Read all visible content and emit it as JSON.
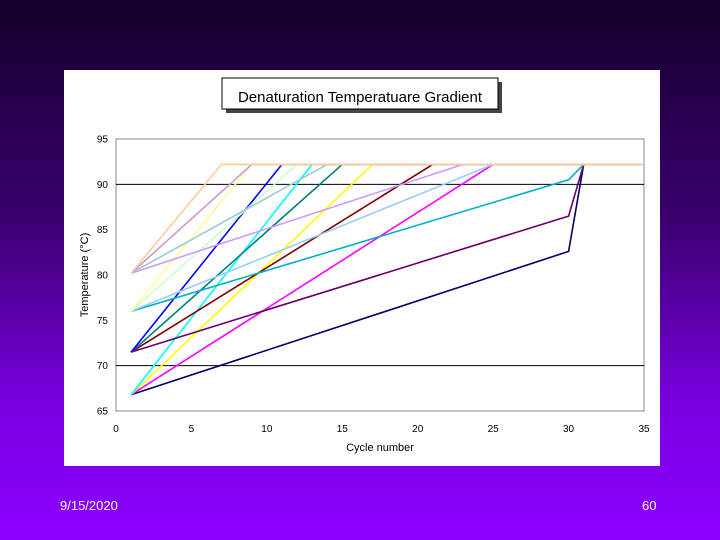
{
  "footer": {
    "date": "9/15/2020",
    "page": "60"
  },
  "chart_data": {
    "type": "line",
    "title": "Denaturation Temperatuare Gradient",
    "xlabel": "Cycle number",
    "ylabel": "Temperature (°C)",
    "xlim": [
      0,
      35
    ],
    "ylim": [
      65,
      95
    ],
    "x_ticks": [
      "0",
      "5",
      "10",
      "15",
      "20",
      "25",
      "30",
      "35"
    ],
    "y_ticks": [
      "65",
      "70",
      "75",
      "80",
      "85",
      "90",
      "95"
    ],
    "gridlines_y": [
      70,
      90
    ],
    "plateau": 92.2,
    "legend": "none",
    "series": [
      {
        "color": "#000066",
        "points": [
          [
            1,
            66.8
          ],
          [
            30,
            82.6
          ],
          [
            31,
            92.2
          ]
        ]
      },
      {
        "color": "#FF00FF",
        "points": [
          [
            1,
            66.8
          ],
          [
            25,
            92.2
          ]
        ]
      },
      {
        "color": "#FFFF00",
        "points": [
          [
            1,
            66.8
          ],
          [
            17,
            92.2
          ]
        ]
      },
      {
        "color": "#00FFFF",
        "points": [
          [
            1,
            66.8
          ],
          [
            13,
            92.2
          ]
        ]
      },
      {
        "color": "#660066",
        "points": [
          [
            1,
            71.5
          ],
          [
            30,
            86.5
          ],
          [
            31,
            92.2
          ]
        ]
      },
      {
        "color": "#800000",
        "points": [
          [
            1,
            71.5
          ],
          [
            21,
            92.2
          ]
        ]
      },
      {
        "color": "#008080",
        "points": [
          [
            1,
            71.5
          ],
          [
            15,
            92.2
          ]
        ]
      },
      {
        "color": "#0000FF",
        "points": [
          [
            1,
            71.5
          ],
          [
            11,
            92.2
          ]
        ]
      },
      {
        "color": "#00B0C8",
        "points": [
          [
            1,
            76.0
          ],
          [
            30,
            90.5
          ],
          [
            31,
            92.2
          ]
        ]
      },
      {
        "color": "#99CCFF",
        "points": [
          [
            1,
            76.0
          ],
          [
            25,
            92.2
          ]
        ]
      },
      {
        "color": "#CCFFCC",
        "points": [
          [
            1,
            76.0
          ],
          [
            12,
            92.2
          ]
        ]
      },
      {
        "color": "#FFFF99",
        "points": [
          [
            1,
            76.0
          ],
          [
            9,
            92.2
          ]
        ]
      },
      {
        "color": "#CC99FF",
        "points": [
          [
            1,
            80.2
          ],
          [
            23,
            92.2
          ]
        ]
      },
      {
        "color": "#99CCCC",
        "points": [
          [
            1,
            80.2
          ],
          [
            14,
            92.2
          ]
        ]
      },
      {
        "color": "#CC99CC",
        "points": [
          [
            1,
            80.2
          ],
          [
            9,
            92.2
          ]
        ]
      },
      {
        "color": "#FFCC99",
        "points": [
          [
            1,
            80.2
          ],
          [
            7,
            92.2
          ]
        ]
      }
    ]
  }
}
